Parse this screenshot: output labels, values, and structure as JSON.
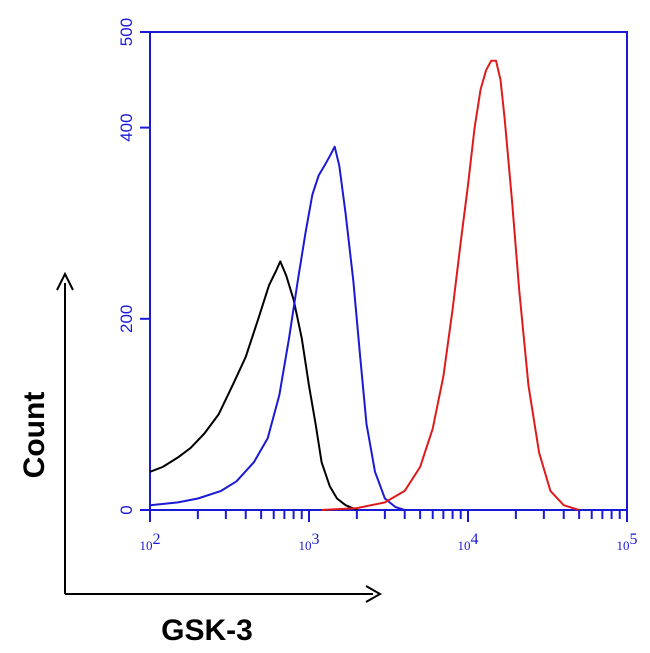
{
  "chart_data": {
    "type": "line",
    "title": "",
    "xlabel": "GSK-3",
    "ylabel": "Count",
    "x_scale": "log",
    "xlim": [
      100,
      100000
    ],
    "ylim": [
      0,
      500
    ],
    "y_ticks": [
      0,
      200,
      400,
      500
    ],
    "y_tick_labels": [
      "0",
      "200",
      "400",
      "500"
    ],
    "x_ticks": [
      100,
      1000,
      10000,
      100000
    ],
    "x_tick_labels": [
      {
        "base": "10",
        "exp": "2"
      },
      {
        "base": "10",
        "exp": "3"
      },
      {
        "base": "10",
        "exp": "4"
      },
      {
        "base": "10",
        "exp": "5"
      }
    ],
    "grid": false,
    "legend": "none",
    "frame_color": "#1a1ad6",
    "series": [
      {
        "color": "#000000",
        "x": [
          100,
          120,
          150,
          180,
          220,
          270,
          330,
          400,
          480,
          560,
          620,
          660,
          720,
          800,
          900,
          1000,
          1100,
          1200,
          1350,
          1500,
          1700,
          2000
        ],
        "y": [
          40,
          45,
          55,
          65,
          80,
          100,
          130,
          160,
          200,
          235,
          250,
          260,
          245,
          220,
          180,
          130,
          90,
          50,
          25,
          12,
          5,
          0
        ]
      },
      {
        "color": "#1a1ad6",
        "x": [
          100,
          150,
          200,
          280,
          350,
          450,
          550,
          650,
          750,
          850,
          950,
          1050,
          1150,
          1250,
          1350,
          1450,
          1550,
          1700,
          1900,
          2100,
          2300,
          2600,
          3000,
          3500,
          4000
        ],
        "y": [
          5,
          8,
          12,
          20,
          30,
          50,
          75,
          120,
          180,
          240,
          290,
          330,
          350,
          360,
          370,
          380,
          360,
          310,
          240,
          160,
          90,
          40,
          12,
          3,
          0
        ]
      },
      {
        "color": "#e01a1a",
        "x": [
          1200,
          2000,
          3000,
          4000,
          5000,
          6000,
          7000,
          8000,
          9000,
          10000,
          11000,
          12000,
          13000,
          14000,
          15000,
          16000,
          17000,
          19000,
          21000,
          24000,
          28000,
          33000,
          40000,
          50000
        ],
        "y": [
          0,
          2,
          8,
          20,
          45,
          85,
          140,
          210,
          280,
          340,
          400,
          440,
          460,
          470,
          470,
          450,
          410,
          320,
          230,
          130,
          60,
          20,
          5,
          0
        ]
      }
    ]
  }
}
